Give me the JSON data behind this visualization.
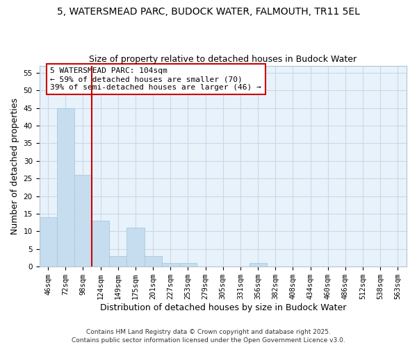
{
  "title1": "5, WATERSMEAD PARC, BUDOCK WATER, FALMOUTH, TR11 5EL",
  "title2": "Size of property relative to detached houses in Budock Water",
  "xlabel": "Distribution of detached houses by size in Budock Water",
  "ylabel": "Number of detached properties",
  "bar_labels": [
    "46sqm",
    "72sqm",
    "98sqm",
    "124sqm",
    "149sqm",
    "175sqm",
    "201sqm",
    "227sqm",
    "253sqm",
    "279sqm",
    "305sqm",
    "331sqm",
    "356sqm",
    "382sqm",
    "408sqm",
    "434sqm",
    "460sqm",
    "486sqm",
    "512sqm",
    "538sqm",
    "563sqm"
  ],
  "bar_values": [
    14,
    45,
    26,
    13,
    3,
    11,
    3,
    1,
    1,
    0,
    0,
    0,
    1,
    0,
    0,
    0,
    0,
    0,
    0,
    0,
    0
  ],
  "bar_color": "#c5ddef",
  "bar_edge_color": "#a8c8e0",
  "grid_color": "#c8d8ea",
  "background_color": "#e8f2fa",
  "vline_color": "#cc0000",
  "annotation_text": "5 WATERSMEAD PARC: 104sqm\n← 59% of detached houses are smaller (70)\n39% of semi-detached houses are larger (46) →",
  "ylim": [
    0,
    57
  ],
  "yticks": [
    0,
    5,
    10,
    15,
    20,
    25,
    30,
    35,
    40,
    45,
    50,
    55
  ],
  "footer1": "Contains HM Land Registry data © Crown copyright and database right 2025.",
  "footer2": "Contains public sector information licensed under the Open Government Licence v3.0.",
  "title_fontsize": 10,
  "subtitle_fontsize": 9,
  "axis_label_fontsize": 9,
  "tick_fontsize": 7.5,
  "annotation_fontsize": 8,
  "footer_fontsize": 6.5
}
